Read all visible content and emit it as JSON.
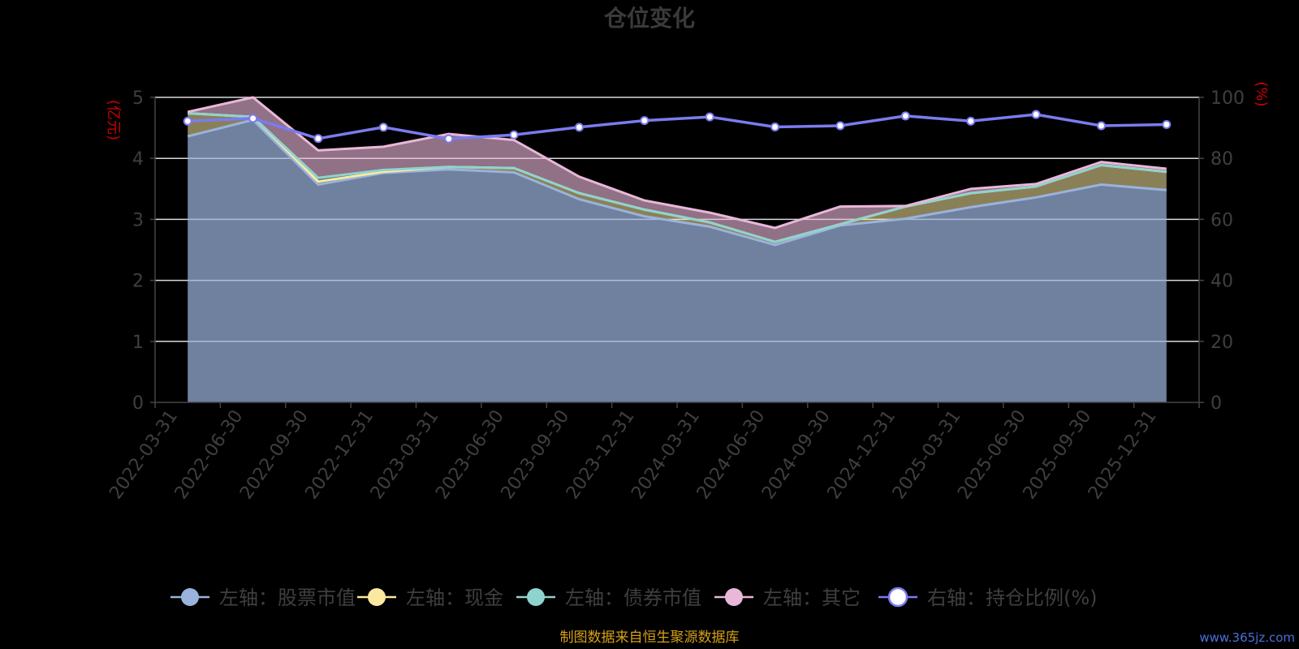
{
  "chart_data": {
    "type": "area",
    "title": "仓位变化",
    "left_axis_unit": "(亿元)",
    "right_axis_unit": "(%)",
    "x": [
      "2022-03-31",
      "2022-06-30",
      "2022-09-30",
      "2022-12-31",
      "2023-03-31",
      "2023-06-30",
      "2023-09-30",
      "2023-12-31",
      "2024-03-31",
      "2024-06-30",
      "2024-09-30",
      "2024-12-31",
      "2025-03-31",
      "2025-06-30",
      "2025-09-30",
      "2025-12-31"
    ],
    "left_ylim": [
      0,
      5
    ],
    "left_yticks": [
      0,
      1,
      2,
      3,
      4,
      5
    ],
    "right_ylim": [
      0,
      100
    ],
    "right_yticks": [
      0,
      20,
      40,
      60,
      80,
      100
    ],
    "grid": true,
    "legend_placement": "bottom",
    "series": [
      {
        "name": "左轴：股票市值",
        "axis": "left",
        "kind": "stacked-area",
        "color": "#9ab3dc",
        "values": [
          4.36,
          4.63,
          3.57,
          3.76,
          3.82,
          3.77,
          3.33,
          3.05,
          2.88,
          2.58,
          2.9,
          3.01,
          3.2,
          3.36,
          3.57,
          3.48
        ]
      },
      {
        "name": "左轴：现金",
        "axis": "left",
        "kind": "stacked-area",
        "color": "#fce9a0",
        "values": [
          0.38,
          0.05,
          0.05,
          0.02,
          0.04,
          0.07,
          0.1,
          0.11,
          0.07,
          0.05,
          0.02,
          0.2,
          0.23,
          0.18,
          0.32,
          0.3
        ]
      },
      {
        "name": "左轴：债券市值",
        "axis": "left",
        "kind": "stacked-area",
        "color": "#8fd3cf",
        "values": [
          0.0,
          0.0,
          0.06,
          0.03,
          0.0,
          0.0,
          0.0,
          0.0,
          0.0,
          0.0,
          0.0,
          0.0,
          0.0,
          0.0,
          0.0,
          0.0
        ]
      },
      {
        "name": "左轴：其它",
        "axis": "left",
        "kind": "stacked-area",
        "color": "#e9b7d8",
        "values": [
          0.02,
          0.32,
          0.45,
          0.38,
          0.54,
          0.46,
          0.27,
          0.15,
          0.16,
          0.23,
          0.29,
          0.01,
          0.07,
          0.04,
          0.05,
          0.05
        ]
      },
      {
        "name": "右轴：持仓比例(%)",
        "axis": "right",
        "kind": "line",
        "color": "#7b7bef",
        "values": [
          92.2,
          93.1,
          86.5,
          90.2,
          86.4,
          87.7,
          90.2,
          92.4,
          93.6,
          90.3,
          90.7,
          93.9,
          92.2,
          94.4,
          90.7,
          91.1
        ]
      }
    ]
  },
  "footer": {
    "source": "制图数据来自恒生聚源数据库",
    "watermark": "www.365jz.com"
  }
}
